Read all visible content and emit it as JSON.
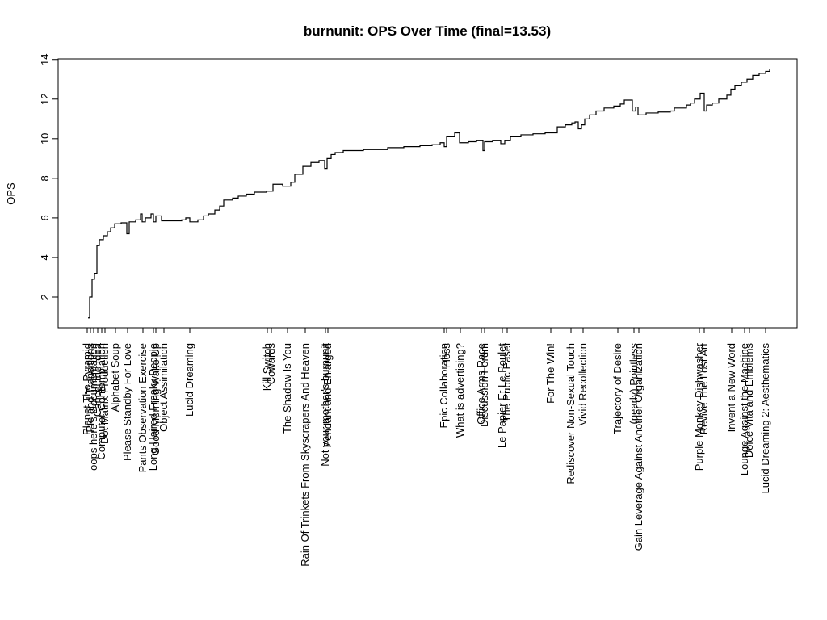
{
  "chart_data": {
    "type": "step",
    "title": "burnunit: OPS Over Time (final=13.53)",
    "y_label": "OPS",
    "ylim": [
      0.45,
      14.03
    ],
    "yticks": [
      2,
      4,
      6,
      8,
      10,
      12,
      14
    ],
    "xlim": [
      0,
      915
    ],
    "color": "#000000",
    "x": [
      37,
      39,
      42,
      45,
      48,
      51,
      56,
      61,
      65,
      70,
      78,
      85,
      88,
      96,
      102,
      104,
      108,
      115,
      118,
      121,
      128,
      153,
      158,
      163,
      173,
      180,
      186,
      194,
      200,
      205,
      216,
      223,
      233,
      243,
      258,
      266,
      278,
      288,
      293,
      303,
      313,
      323,
      330,
      333,
      338,
      343,
      353,
      378,
      408,
      428,
      448,
      463,
      473,
      478,
      481,
      491,
      497,
      508,
      518,
      526,
      528,
      538,
      548,
      553,
      560,
      573,
      588,
      603,
      618,
      628,
      636,
      640,
      644,
      648,
      652,
      658,
      666,
      676,
      688,
      696,
      701,
      711,
      715,
      718,
      728,
      743,
      758,
      763,
      778,
      783,
      788,
      795,
      800,
      803,
      810,
      818,
      828,
      833,
      838,
      846,
      853,
      860,
      868,
      876,
      881
    ],
    "values": [
      0.95,
      2.0,
      2.9,
      3.2,
      4.6,
      4.9,
      5.1,
      5.3,
      5.5,
      5.7,
      5.75,
      5.2,
      5.8,
      5.9,
      6.2,
      5.8,
      6.0,
      6.2,
      5.8,
      6.1,
      5.85,
      5.9,
      6.0,
      5.8,
      5.9,
      6.1,
      6.2,
      6.4,
      6.6,
      6.9,
      7.0,
      7.1,
      7.2,
      7.3,
      7.35,
      7.7,
      7.6,
      7.8,
      8.2,
      8.6,
      8.8,
      8.9,
      8.5,
      9.0,
      9.2,
      9.3,
      9.4,
      9.45,
      9.55,
      9.6,
      9.65,
      9.7,
      9.8,
      9.6,
      10.1,
      10.3,
      9.8,
      9.85,
      9.9,
      9.4,
      9.85,
      9.9,
      9.75,
      9.9,
      10.1,
      10.2,
      10.25,
      10.3,
      10.6,
      10.7,
      10.8,
      10.85,
      10.5,
      10.7,
      11.0,
      11.2,
      11.4,
      11.55,
      11.65,
      11.75,
      11.95,
      11.4,
      11.6,
      11.2,
      11.3,
      11.35,
      11.4,
      11.55,
      11.7,
      11.8,
      12.0,
      12.3,
      11.4,
      11.7,
      11.8,
      12.0,
      12.2,
      12.5,
      12.7,
      12.85,
      13.0,
      13.2,
      13.3,
      13.4,
      13.53
    ],
    "events": {
      "x": [
        36,
        40,
        44,
        49,
        54,
        58,
        71,
        86,
        105,
        118,
        121,
        131,
        163,
        259,
        264,
        284,
        306,
        331,
        334,
        478,
        481,
        498,
        524,
        528,
        550,
        556,
        610,
        635,
        650,
        693,
        713,
        719,
        794,
        800,
        834,
        850,
        856,
        876
      ],
      "labels": [
        "Planet The Pyramid",
        "Pie and Transitions",
        "oops here's Documentation",
        "Cancel the Idea",
        "Computer Contemplation",
        "Dot Matrix Production",
        "Alphabet Soup",
        "Please Standby For Love",
        "Pants Observation Exercise",
        "Long Haired Freaky People",
        "Good Morning Wake Up",
        "Object Assimilation",
        "Lucid Dreaming",
        "Kill Switch",
        "Cowards",
        "The Shadow Is You",
        "Rain Of Trinkets From Skyscrapers And Heaven",
        "Not your mother's burnunit",
        "Pendant and Enlarged",
        "Epic Collaboration",
        "Floss",
        "What is advertising?",
        "Office Arms Race",
        "Discussion Forum",
        "Le Papier Et Le Poulet",
        "The Public Easel",
        "For The Win!",
        "Rediscover Non-Sexual Touch",
        "Vivid Recollection",
        "Trajectory of Desire",
        "(nearly) Pointless",
        "Gain Leverage Against Another Organization",
        "Purple Monkey Dishwasher",
        "Revive The Lost Art",
        "Invent a New Word",
        "Lounge Against the Machine",
        "Dolce Vita and Emblems",
        "Lucid Dreaming 2: Aesthematics"
      ]
    }
  }
}
